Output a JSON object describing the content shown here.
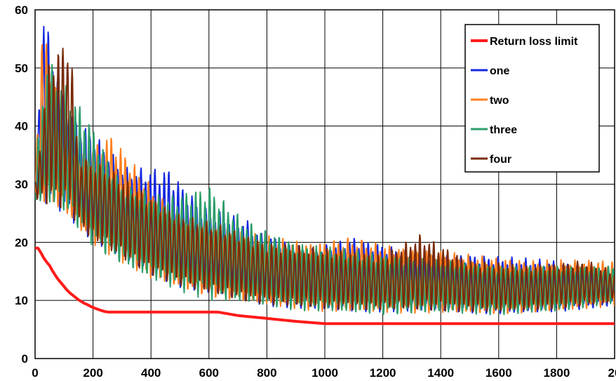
{
  "chart_data": {
    "type": "line",
    "title": "",
    "xlabel": "",
    "ylabel": "",
    "xlim": [
      0,
      2000
    ],
    "ylim": [
      0,
      60
    ],
    "x_ticks": [
      "0",
      "200",
      "400",
      "600",
      "800",
      "1000",
      "1200",
      "1400",
      "1600",
      "1800",
      "20"
    ],
    "y_ticks": [
      "0",
      "10",
      "20",
      "30",
      "40",
      "50",
      "60"
    ],
    "grid": true,
    "legend_position": "top-right",
    "series": [
      {
        "name": "Return loss limit",
        "color": "#ff1a1a",
        "x": [
          0,
          10,
          20,
          30,
          40,
          50,
          60,
          70,
          80,
          90,
          100,
          110,
          120,
          130,
          140,
          150,
          160,
          170,
          180,
          190,
          200,
          210,
          220,
          230,
          240,
          250,
          260,
          400,
          500,
          600,
          630,
          700,
          800,
          900,
          1000,
          1200,
          1400,
          1600,
          1800,
          2000
        ],
        "values": [
          19,
          19,
          18.2,
          17.3,
          16.6,
          16.0,
          15.1,
          14.3,
          13.6,
          13.0,
          12.4,
          11.8,
          11.3,
          10.9,
          10.5,
          10.1,
          9.8,
          9.5,
          9.3,
          9.0,
          8.8,
          8.6,
          8.4,
          8.25,
          8.1,
          8.0,
          8.0,
          8.0,
          8.0,
          8.0,
          8.0,
          7.4,
          6.9,
          6.4,
          6.0,
          6.0,
          6.0,
          6.0,
          6.0,
          6.0
        ]
      },
      {
        "name": "one",
        "color": "#1428e0",
        "peaks": [
          [
            0,
            33
          ],
          [
            30,
            60
          ],
          [
            100,
            45
          ],
          [
            130,
            42
          ],
          [
            220,
            38
          ],
          [
            310,
            33
          ],
          [
            460,
            33
          ],
          [
            580,
            26
          ],
          [
            730,
            24
          ],
          [
            770,
            22
          ],
          [
            950,
            19
          ],
          [
            1100,
            21
          ],
          [
            1180,
            20
          ],
          [
            1350,
            18
          ],
          [
            1500,
            18
          ],
          [
            1780,
            17
          ],
          [
            2000,
            15
          ]
        ],
        "troughs": [
          [
            0,
            27
          ],
          [
            100,
            25
          ],
          [
            200,
            20
          ],
          [
            300,
            17
          ],
          [
            400,
            14
          ],
          [
            500,
            12
          ],
          [
            600,
            11
          ],
          [
            700,
            10
          ],
          [
            800,
            9
          ],
          [
            900,
            8.5
          ],
          [
            1000,
            8.2
          ],
          [
            1200,
            8
          ],
          [
            1400,
            8
          ],
          [
            1600,
            7.5
          ],
          [
            1800,
            8
          ],
          [
            2000,
            9
          ]
        ]
      },
      {
        "name": "two",
        "color": "#ff7f1e",
        "peaks": [
          [
            0,
            34
          ],
          [
            30,
            60
          ],
          [
            60,
            49
          ],
          [
            110,
            40
          ],
          [
            150,
            35
          ],
          [
            260,
            39
          ],
          [
            400,
            30
          ],
          [
            480,
            25
          ],
          [
            580,
            24
          ],
          [
            700,
            22
          ],
          [
            950,
            20
          ],
          [
            1080,
            21
          ],
          [
            1300,
            19
          ],
          [
            1500,
            18
          ],
          [
            1700,
            17
          ],
          [
            2000,
            17
          ]
        ],
        "troughs": [
          [
            0,
            27
          ],
          [
            100,
            25
          ],
          [
            200,
            19.5
          ],
          [
            300,
            16.5
          ],
          [
            400,
            13.5
          ],
          [
            500,
            12
          ],
          [
            600,
            10.5
          ],
          [
            700,
            9.8
          ],
          [
            800,
            9
          ],
          [
            900,
            8.5
          ],
          [
            1000,
            8
          ],
          [
            1200,
            7.8
          ],
          [
            1400,
            7.8
          ],
          [
            1600,
            7.5
          ],
          [
            1800,
            8
          ],
          [
            2000,
            9
          ]
        ]
      },
      {
        "name": "three",
        "color": "#2e9e6b",
        "peaks": [
          [
            0,
            33
          ],
          [
            40,
            52
          ],
          [
            80,
            49
          ],
          [
            180,
            42
          ],
          [
            300,
            30
          ],
          [
            450,
            28
          ],
          [
            600,
            30
          ],
          [
            720,
            24
          ],
          [
            900,
            20
          ],
          [
            1050,
            19
          ],
          [
            1200,
            18
          ],
          [
            1400,
            17
          ],
          [
            1600,
            16
          ],
          [
            1800,
            16
          ],
          [
            2000,
            16
          ]
        ],
        "troughs": [
          [
            0,
            27
          ],
          [
            100,
            25
          ],
          [
            200,
            19
          ],
          [
            300,
            16
          ],
          [
            400,
            13.5
          ],
          [
            500,
            11.5
          ],
          [
            600,
            10
          ],
          [
            700,
            9.5
          ],
          [
            800,
            9
          ],
          [
            900,
            8.2
          ],
          [
            1000,
            8
          ],
          [
            1200,
            7.5
          ],
          [
            1400,
            7.8
          ],
          [
            1600,
            7.5
          ],
          [
            1800,
            8
          ],
          [
            2000,
            9.5
          ]
        ]
      },
      {
        "name": "four",
        "color": "#7a2a08",
        "peaks": [
          [
            0,
            30
          ],
          [
            50,
            52
          ],
          [
            120,
            56
          ],
          [
            150,
            35
          ],
          [
            250,
            33
          ],
          [
            400,
            28
          ],
          [
            500,
            25
          ],
          [
            650,
            23
          ],
          [
            800,
            20
          ],
          [
            1000,
            19
          ],
          [
            1200,
            18
          ],
          [
            1330,
            21.5
          ],
          [
            1500,
            17
          ],
          [
            1700,
            16
          ],
          [
            1900,
            17
          ],
          [
            2000,
            15
          ]
        ],
        "troughs": [
          [
            0,
            27
          ],
          [
            100,
            25.5
          ],
          [
            200,
            20
          ],
          [
            300,
            17
          ],
          [
            400,
            14.5
          ],
          [
            500,
            12.5
          ],
          [
            600,
            11
          ],
          [
            700,
            10
          ],
          [
            800,
            9.2
          ],
          [
            900,
            8.8
          ],
          [
            1000,
            8.5
          ],
          [
            1200,
            8.2
          ],
          [
            1400,
            8.2
          ],
          [
            1600,
            8
          ],
          [
            1800,
            8.5
          ],
          [
            2000,
            9.5
          ]
        ]
      }
    ]
  }
}
